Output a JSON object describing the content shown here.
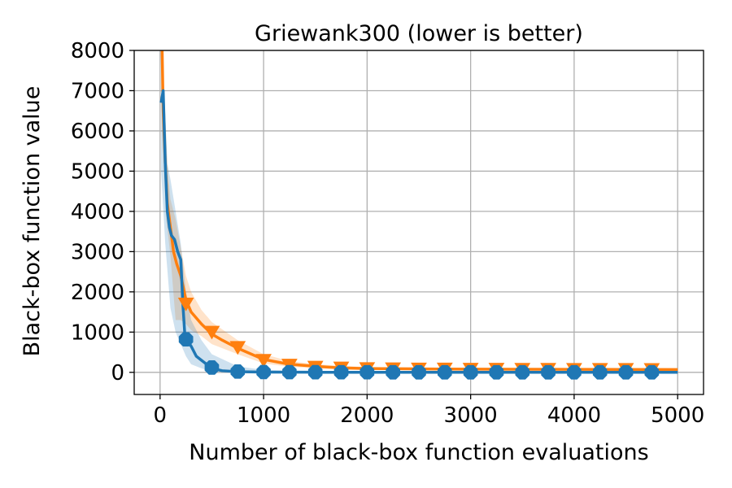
{
  "chart_data": {
    "type": "line",
    "title": "Griewank300 (lower is better)",
    "xlabel": "Number of black-box function evaluations",
    "ylabel": "Black-box function value",
    "xlim": [
      -250,
      5250
    ],
    "ylim": [
      -550,
      8000
    ],
    "xticks": [
      0,
      1000,
      2000,
      3000,
      4000,
      5000
    ],
    "yticks": [
      0,
      1000,
      2000,
      3000,
      4000,
      5000,
      6000,
      7000,
      8000
    ],
    "grid": true,
    "series": [
      {
        "color": "#ff7f0e",
        "marker": "triangle-down",
        "line": [
          [
            20,
            8000
          ],
          [
            30,
            6500
          ],
          [
            50,
            5200
          ],
          [
            70,
            4200
          ],
          [
            100,
            3600
          ],
          [
            130,
            3000
          ],
          [
            160,
            2700
          ],
          [
            200,
            2400
          ],
          [
            250,
            1800
          ],
          [
            300,
            1500
          ],
          [
            400,
            1200
          ],
          [
            500,
            950
          ],
          [
            600,
            800
          ],
          [
            750,
            600
          ],
          [
            1000,
            320
          ],
          [
            1250,
            200
          ],
          [
            1500,
            150
          ],
          [
            1750,
            110
          ],
          [
            2000,
            95
          ],
          [
            2500,
            85
          ],
          [
            3000,
            80
          ],
          [
            4000,
            75
          ],
          [
            5000,
            70
          ]
        ],
        "band_upper": [
          [
            20,
            8000
          ],
          [
            40,
            7000
          ],
          [
            70,
            5200
          ],
          [
            100,
            4300
          ],
          [
            150,
            3800
          ],
          [
            200,
            3100
          ],
          [
            250,
            2400
          ],
          [
            300,
            2000
          ],
          [
            400,
            1550
          ],
          [
            500,
            1250
          ],
          [
            750,
            800
          ],
          [
            1000,
            450
          ],
          [
            1250,
            280
          ],
          [
            1500,
            200
          ],
          [
            2000,
            130
          ],
          [
            3000,
            110
          ],
          [
            5000,
            100
          ]
        ],
        "band_lower": [
          [
            20,
            6000
          ],
          [
            60,
            3800
          ],
          [
            100,
            2900
          ],
          [
            150,
            1300
          ],
          [
            200,
            1300
          ],
          [
            250,
            1200
          ],
          [
            300,
            1050
          ],
          [
            400,
            900
          ],
          [
            500,
            700
          ],
          [
            750,
            450
          ],
          [
            1000,
            220
          ],
          [
            1250,
            140
          ],
          [
            1500,
            100
          ],
          [
            2000,
            70
          ],
          [
            3000,
            60
          ],
          [
            5000,
            50
          ]
        ],
        "markers": [
          [
            250,
            1700
          ],
          [
            500,
            1000
          ],
          [
            750,
            620
          ],
          [
            1000,
            300
          ],
          [
            1250,
            180
          ],
          [
            1500,
            130
          ],
          [
            1750,
            110
          ],
          [
            2000,
            95
          ],
          [
            2250,
            90
          ],
          [
            2500,
            85
          ],
          [
            2750,
            85
          ],
          [
            3000,
            80
          ],
          [
            3250,
            80
          ],
          [
            3500,
            78
          ],
          [
            3750,
            77
          ],
          [
            4000,
            76
          ],
          [
            4250,
            75
          ],
          [
            4500,
            74
          ],
          [
            4750,
            72
          ]
        ]
      },
      {
        "color": "#1f77b4",
        "marker": "octagon",
        "line": [
          [
            10,
            6700
          ],
          [
            30,
            7000
          ],
          [
            50,
            5200
          ],
          [
            70,
            4000
          ],
          [
            90,
            3600
          ],
          [
            110,
            3400
          ],
          [
            140,
            3300
          ],
          [
            170,
            3000
          ],
          [
            200,
            2800
          ],
          [
            220,
            1700
          ],
          [
            240,
            900
          ],
          [
            260,
            800
          ],
          [
            300,
            650
          ],
          [
            350,
            400
          ],
          [
            400,
            300
          ],
          [
            450,
            200
          ],
          [
            500,
            100
          ],
          [
            600,
            40
          ],
          [
            750,
            15
          ],
          [
            1000,
            5
          ],
          [
            1500,
            2
          ],
          [
            5000,
            0
          ]
        ],
        "band_upper": [
          [
            10,
            8000
          ],
          [
            40,
            7000
          ],
          [
            70,
            5200
          ],
          [
            100,
            4800
          ],
          [
            150,
            4000
          ],
          [
            200,
            3200
          ],
          [
            250,
            2000
          ],
          [
            300,
            1300
          ],
          [
            400,
            800
          ],
          [
            500,
            450
          ],
          [
            750,
            150
          ],
          [
            1000,
            60
          ],
          [
            1500,
            20
          ],
          [
            5000,
            10
          ]
        ],
        "band_lower": [
          [
            10,
            5000
          ],
          [
            50,
            3200
          ],
          [
            100,
            1600
          ],
          [
            150,
            1000
          ],
          [
            200,
            700
          ],
          [
            250,
            400
          ],
          [
            300,
            200
          ],
          [
            400,
            100
          ],
          [
            500,
            20
          ],
          [
            750,
            0
          ],
          [
            5000,
            0
          ]
        ],
        "markers": [
          [
            250,
            820
          ],
          [
            500,
            120
          ],
          [
            750,
            20
          ],
          [
            1000,
            8
          ],
          [
            1250,
            5
          ],
          [
            1500,
            3
          ],
          [
            1750,
            2
          ],
          [
            2000,
            2
          ],
          [
            2250,
            1
          ],
          [
            2500,
            1
          ],
          [
            2750,
            1
          ],
          [
            3000,
            1
          ],
          [
            3250,
            1
          ],
          [
            3500,
            1
          ],
          [
            3750,
            1
          ],
          [
            4000,
            1
          ],
          [
            4250,
            1
          ],
          [
            4500,
            1
          ],
          [
            4750,
            1
          ]
        ]
      }
    ]
  }
}
